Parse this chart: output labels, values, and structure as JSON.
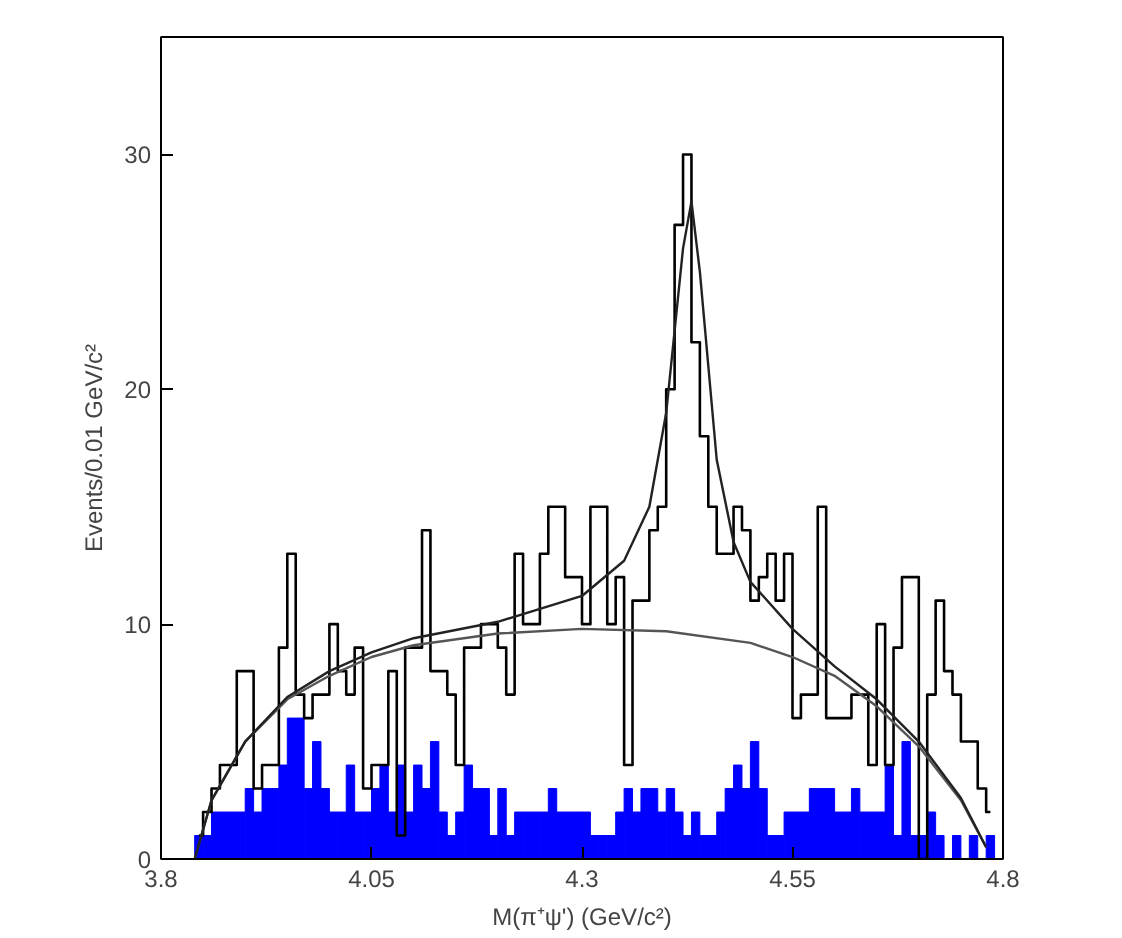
{
  "chart_data": {
    "type": "histogram",
    "xlabel": "M(π⁺ψ') (GeV/c²)",
    "ylabel": "Events/0.01 GeV/c²",
    "bins": [
      3.84,
      3.85,
      3.86,
      3.87,
      3.88,
      3.89,
      3.9,
      3.91,
      3.92,
      3.93,
      3.94,
      3.95,
      3.96,
      3.97,
      3.98,
      3.99,
      4.0,
      4.01,
      4.02,
      4.03,
      4.04,
      4.05,
      4.06,
      4.07,
      4.08,
      4.09,
      4.1,
      4.11,
      4.12,
      4.13,
      4.14,
      4.15,
      4.16,
      4.17,
      4.18,
      4.19,
      4.2,
      4.21,
      4.22,
      4.23,
      4.24,
      4.25,
      4.26,
      4.27,
      4.28,
      4.29,
      4.3,
      4.31,
      4.32,
      4.33,
      4.34,
      4.35,
      4.36,
      4.37,
      4.38,
      4.39,
      4.4,
      4.41,
      4.42,
      4.43,
      4.44,
      4.45,
      4.46,
      4.47,
      4.48,
      4.49,
      4.5,
      4.51,
      4.52,
      4.53,
      4.54,
      4.55,
      4.56,
      4.57,
      4.58,
      4.59,
      4.6,
      4.61,
      4.62,
      4.63,
      4.64,
      4.65,
      4.66,
      4.67,
      4.68,
      4.69,
      4.7,
      4.71,
      4.72,
      4.73,
      4.74,
      4.75,
      4.76,
      4.77,
      4.78,
      4.79
    ],
    "series": [
      {
        "type": "step",
        "color": "#000000",
        "x": [
          3.845,
          3.855,
          3.865,
          3.875,
          3.885,
          3.895,
          3.905,
          3.915,
          3.925,
          3.935,
          3.945,
          3.955,
          3.965,
          3.975,
          3.985,
          3.995,
          4.005,
          4.015,
          4.025,
          4.035,
          4.045,
          4.055,
          4.065,
          4.075,
          4.085,
          4.095,
          4.105,
          4.115,
          4.125,
          4.135,
          4.145,
          4.155,
          4.165,
          4.175,
          4.185,
          4.195,
          4.205,
          4.215,
          4.225,
          4.235,
          4.245,
          4.255,
          4.265,
          4.275,
          4.285,
          4.295,
          4.305,
          4.315,
          4.325,
          4.335,
          4.345,
          4.355,
          4.365,
          4.375,
          4.385,
          4.395,
          4.405,
          4.415,
          4.425,
          4.435,
          4.445,
          4.455,
          4.465,
          4.475,
          4.485,
          4.495,
          4.505,
          4.515,
          4.525,
          4.535,
          4.545,
          4.555,
          4.565,
          4.575,
          4.585,
          4.595,
          4.605,
          4.615,
          4.625,
          4.635,
          4.645,
          4.655,
          4.665,
          4.675,
          4.685,
          4.695,
          4.705,
          4.715,
          4.725,
          4.735,
          4.745,
          4.755,
          4.765,
          4.775,
          4.785
        ],
        "values": [
          1,
          2,
          3,
          4,
          4,
          8,
          8,
          3,
          4,
          4,
          9,
          13,
          7,
          6,
          7,
          7,
          10,
          8,
          7,
          9,
          3,
          4,
          4,
          8,
          1,
          9,
          9,
          14,
          8,
          8,
          7,
          4,
          9,
          9,
          10,
          10,
          9,
          7,
          13,
          10,
          10,
          13,
          15,
          15,
          12,
          12,
          10,
          15,
          15,
          10,
          12,
          4,
          11,
          11,
          14,
          15,
          20,
          27,
          30,
          22,
          18,
          15,
          13,
          13,
          15,
          14,
          11,
          12,
          13,
          11,
          13,
          6,
          7,
          7,
          15,
          6,
          6,
          6,
          7,
          7,
          4,
          10,
          4,
          9,
          12,
          12,
          0,
          7,
          11,
          8,
          7,
          5,
          5,
          3,
          2
        ]
      },
      {
        "color": "#0000ff",
        "values": [
          1,
          1,
          2,
          2,
          2,
          2,
          3,
          2,
          3,
          3,
          4,
          6,
          6,
          3,
          5,
          3,
          2,
          2,
          4,
          2,
          2,
          3,
          4,
          2,
          4,
          2,
          4,
          3,
          5,
          2,
          1,
          2,
          4,
          3,
          3,
          1,
          3,
          1,
          2,
          2,
          2,
          2,
          3,
          2,
          2,
          2,
          2,
          1,
          1,
          1,
          2,
          3,
          2,
          3,
          3,
          2,
          3,
          2,
          1,
          2,
          1,
          1,
          2,
          3,
          4,
          3,
          5,
          3,
          1,
          1,
          2,
          2,
          2,
          3,
          3,
          3,
          2,
          2,
          3,
          2,
          2,
          2,
          4,
          1,
          5,
          1,
          1,
          2,
          1,
          0,
          1,
          0,
          1,
          0,
          1
        ]
      },
      {
        "type": "line",
        "color": "#555555",
        "x": [
          3.84,
          3.86,
          3.9,
          3.95,
          4.0,
          4.05,
          4.1,
          4.2,
          4.3,
          4.4,
          4.5,
          4.55,
          4.6,
          4.65,
          4.7,
          4.75,
          4.78
        ],
        "values": [
          0,
          2.5,
          5,
          6.8,
          7.8,
          8.6,
          9.1,
          9.6,
          9.8,
          9.7,
          9.2,
          8.6,
          7.8,
          6.5,
          4.8,
          2.5,
          0.5
        ]
      },
      {
        "type": "line",
        "color": "#222222",
        "x": [
          3.84,
          3.86,
          3.9,
          3.95,
          4.0,
          4.05,
          4.1,
          4.2,
          4.3,
          4.35,
          4.38,
          4.4,
          4.42,
          4.43,
          4.44,
          4.46,
          4.48,
          4.5,
          4.55,
          4.6,
          4.65,
          4.7,
          4.75,
          4.78
        ],
        "values": [
          0,
          2.5,
          5,
          6.9,
          8.0,
          8.8,
          9.4,
          10.1,
          11.2,
          12.7,
          15,
          19,
          26,
          28,
          25,
          17,
          13.5,
          11.8,
          9.8,
          8.2,
          6.8,
          5.0,
          2.6,
          0.5
        ]
      }
    ],
    "xlim": [
      3.8,
      4.8
    ],
    "xticks": [
      3.8,
      4.05,
      4.3,
      4.55,
      4.8
    ],
    "ylim": [
      0,
      35
    ],
    "yticks": [
      0,
      10,
      20,
      30
    ],
    "grid": false
  }
}
